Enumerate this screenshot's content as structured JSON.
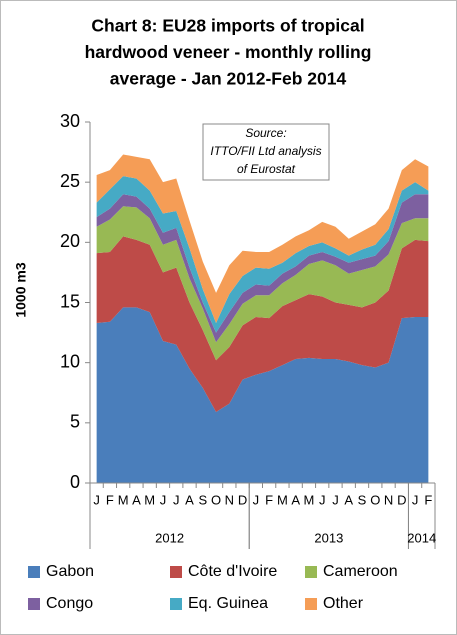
{
  "chart_data": {
    "type": "stacked_area",
    "title": [
      "Chart 8: EU28 imports of tropical",
      "hardwood veneer - monthly rolling",
      "average - Jan 2012-Feb 2014"
    ],
    "annotation": [
      "Source:",
      "ITTO/FII Ltd analysis",
      "of Eurostat"
    ],
    "ylabel": "1000 m3",
    "categories": [
      "J",
      "F",
      "M",
      "A",
      "M",
      "J",
      "J",
      "A",
      "S",
      "O",
      "N",
      "D",
      "J",
      "F",
      "M",
      "A",
      "M",
      "J",
      "J",
      "A",
      "S",
      "O",
      "N",
      "D",
      "J",
      "F"
    ],
    "years": [
      "2012",
      "2013",
      "2014"
    ],
    "ylim": [
      0,
      30
    ],
    "yticks": [
      0,
      5,
      10,
      15,
      20,
      25,
      30
    ],
    "series": [
      {
        "name": "Gabon",
        "color": "#4a7ebb",
        "values": [
          13.3,
          13.4,
          14.6,
          14.6,
          14.2,
          11.8,
          11.5,
          9.5,
          7.9,
          5.9,
          6.6,
          8.6,
          9.0,
          9.3,
          9.8,
          10.3,
          10.4,
          10.3,
          10.3,
          10.1,
          9.8,
          9.6,
          10.0,
          13.7,
          13.8,
          13.8
        ]
      },
      {
        "name": "Côte d'Ivoire",
        "color": "#be4b48",
        "values": [
          5.8,
          5.8,
          5.9,
          5.6,
          5.6,
          5.7,
          6.4,
          5.5,
          4.8,
          4.3,
          4.7,
          4.5,
          4.8,
          4.4,
          4.9,
          4.9,
          5.3,
          5.2,
          4.7,
          4.7,
          4.8,
          5.4,
          6.0,
          5.8,
          6.4,
          6.3
        ]
      },
      {
        "name": "Cameroon",
        "color": "#98b954",
        "values": [
          2.2,
          2.7,
          2.5,
          2.7,
          2.2,
          2.3,
          2.3,
          2.0,
          1.8,
          1.5,
          1.9,
          1.8,
          1.8,
          1.9,
          1.9,
          2.1,
          2.5,
          3.0,
          3.1,
          2.6,
          3.1,
          3.0,
          3.0,
          2.1,
          1.8,
          1.9
        ]
      },
      {
        "name": "Congo",
        "color": "#7d60a0",
        "values": [
          0.8,
          0.9,
          1.0,
          0.9,
          0.8,
          1.0,
          1.0,
          0.9,
          0.5,
          0.8,
          1.0,
          0.9,
          0.9,
          0.8,
          0.8,
          0.7,
          0.7,
          0.7,
          0.7,
          0.9,
          0.9,
          0.9,
          1.1,
          1.7,
          2.0,
          2.0
        ]
      },
      {
        "name": "Eq. Guinea",
        "color": "#46aac5",
        "values": [
          1.2,
          1.6,
          1.5,
          1.5,
          1.5,
          1.6,
          1.4,
          1.6,
          1.1,
          0.8,
          1.5,
          1.4,
          1.4,
          1.4,
          0.9,
          1.1,
          0.8,
          0.8,
          0.7,
          0.6,
          0.8,
          0.9,
          1.0,
          1.0,
          1.0,
          0.3
        ]
      },
      {
        "name": "Other",
        "color": "#f59d56",
        "values": [
          2.3,
          1.6,
          1.8,
          1.8,
          2.6,
          2.6,
          2.7,
          2.3,
          2.3,
          2.5,
          2.4,
          2.1,
          1.3,
          1.4,
          1.5,
          1.4,
          1.3,
          1.7,
          1.8,
          1.4,
          1.5,
          1.7,
          1.7,
          1.7,
          1.9,
          2.0
        ]
      }
    ]
  }
}
